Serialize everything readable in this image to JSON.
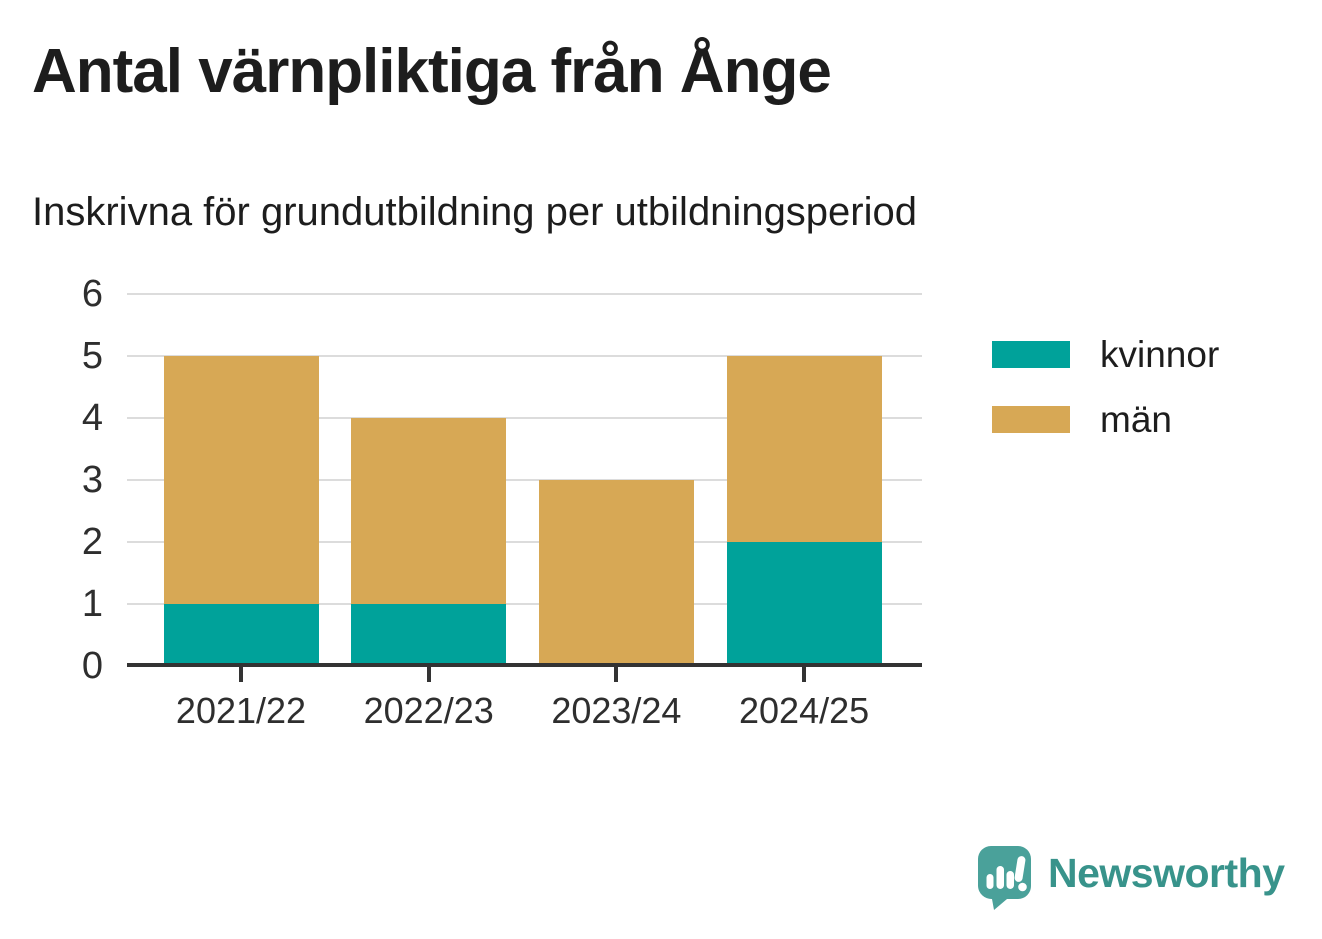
{
  "header": {
    "title": "Antal värnpliktiga från Ånge",
    "subtitle": "Inskrivna för grundutbildning per utbildningsperiod"
  },
  "chart_data": {
    "type": "bar",
    "stacked": true,
    "title": "Antal värnpliktiga från Ånge",
    "subtitle": "Inskrivna för grundutbildning per utbildningsperiod",
    "categories": [
      "2021/22",
      "2022/23",
      "2023/24",
      "2024/25"
    ],
    "series": [
      {
        "name": "kvinnor",
        "color": "#00a29a",
        "values": [
          1,
          1,
          0,
          2
        ]
      },
      {
        "name": "män",
        "color": "#d7a855",
        "values": [
          4,
          3,
          3,
          3
        ]
      }
    ],
    "totals": [
      5,
      4,
      3,
      5
    ],
    "xlabel": "",
    "ylabel": "",
    "ylim": [
      0,
      6
    ],
    "yticks": [
      0,
      1,
      2,
      3,
      4,
      5,
      6
    ],
    "grid": true,
    "grid_color": "#dcdcdc",
    "axis_color": "#333333",
    "legend_position": "right"
  },
  "branding": {
    "logo_text": "Newsworthy",
    "logo_text_color": "#38938b",
    "logo_icon_color": "#4aa19a",
    "logo_icon": "speech-bubble-bar-chart-exclamation"
  }
}
